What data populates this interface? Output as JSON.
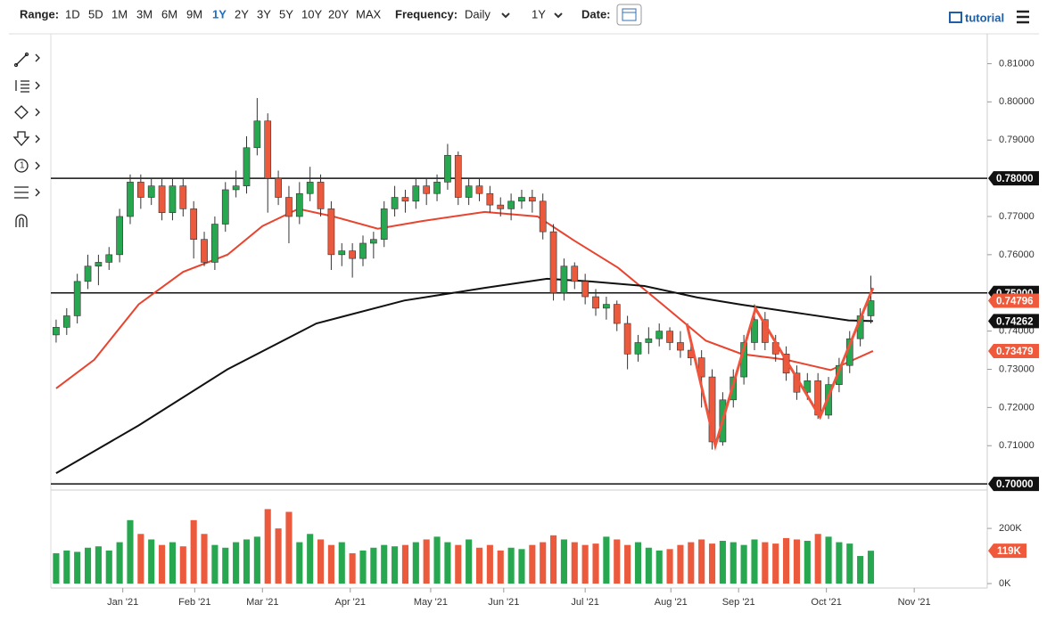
{
  "toolbar": {
    "range_label": "Range:",
    "ranges": [
      "1D",
      "5D",
      "1M",
      "3M",
      "6M",
      "9M",
      "1Y",
      "2Y",
      "3Y",
      "5Y",
      "10Y",
      "20Y",
      "MAX"
    ],
    "frequency_label": "Frequency:",
    "frequency": "Daily",
    "period": "1Y",
    "date_label": "Date:",
    "tutorial": "tutorial"
  },
  "chart_data": {
    "type": "candlestick",
    "open": [
      0.739,
      0.741,
      0.744,
      0.753,
      0.757,
      0.758,
      0.76,
      0.77,
      0.779,
      0.775,
      0.778,
      0.771,
      0.778,
      0.772,
      0.764,
      0.758,
      0.768,
      0.777,
      0.778,
      0.788,
      0.795,
      0.78,
      0.775,
      0.77,
      0.776,
      0.779,
      0.772,
      0.76,
      0.761,
      0.759,
      0.763,
      0.764,
      0.772,
      0.775,
      0.774,
      0.778,
      0.776,
      0.779,
      0.786,
      0.775,
      0.778,
      0.776,
      0.773,
      0.772,
      0.774,
      0.775,
      0.774,
      0.766,
      0.75,
      0.757,
      0.753,
      0.749,
      0.746,
      0.747,
      0.742,
      0.734,
      0.737,
      0.738,
      0.74,
      0.737,
      0.735,
      0.733,
      0.728,
      0.711,
      0.722,
      0.728,
      0.737,
      0.743,
      0.737,
      0.734,
      0.729,
      0.724,
      0.727,
      0.718,
      0.726,
      0.731,
      0.738,
      0.744
    ],
    "high": [
      0.743,
      0.746,
      0.755,
      0.76,
      0.76,
      0.762,
      0.772,
      0.781,
      0.781,
      0.78,
      0.78,
      0.78,
      0.78,
      0.774,
      0.766,
      0.77,
      0.779,
      0.782,
      0.791,
      0.801,
      0.797,
      0.782,
      0.778,
      0.779,
      0.783,
      0.781,
      0.774,
      0.763,
      0.763,
      0.765,
      0.766,
      0.774,
      0.778,
      0.777,
      0.78,
      0.78,
      0.781,
      0.789,
      0.787,
      0.78,
      0.78,
      0.778,
      0.775,
      0.776,
      0.777,
      0.777,
      0.776,
      0.768,
      0.759,
      0.758,
      0.755,
      0.751,
      0.749,
      0.748,
      0.744,
      0.739,
      0.741,
      0.742,
      0.741,
      0.74,
      0.737,
      0.735,
      0.73,
      0.724,
      0.73,
      0.739,
      0.747,
      0.745,
      0.739,
      0.736,
      0.731,
      0.729,
      0.729,
      0.728,
      0.733,
      0.74,
      0.746,
      0.7545
    ],
    "low": [
      0.737,
      0.739,
      0.742,
      0.751,
      0.752,
      0.756,
      0.758,
      0.768,
      0.772,
      0.773,
      0.769,
      0.769,
      0.77,
      0.759,
      0.757,
      0.756,
      0.766,
      0.775,
      0.776,
      0.786,
      0.771,
      0.773,
      0.763,
      0.768,
      0.774,
      0.77,
      0.756,
      0.757,
      0.754,
      0.757,
      0.759,
      0.762,
      0.77,
      0.771,
      0.772,
      0.773,
      0.774,
      0.777,
      0.773,
      0.773,
      0.774,
      0.771,
      0.77,
      0.769,
      0.772,
      0.771,
      0.764,
      0.748,
      0.748,
      0.751,
      0.747,
      0.744,
      0.743,
      0.74,
      0.73,
      0.732,
      0.734,
      0.736,
      0.735,
      0.733,
      0.731,
      0.72,
      0.709,
      0.71,
      0.72,
      0.726,
      0.735,
      0.735,
      0.732,
      0.727,
      0.722,
      0.722,
      0.717,
      0.717,
      0.724,
      0.729,
      0.736,
      0.742
    ],
    "close": [
      0.741,
      0.744,
      0.753,
      0.757,
      0.758,
      0.76,
      0.77,
      0.779,
      0.775,
      0.778,
      0.771,
      0.778,
      0.772,
      0.764,
      0.758,
      0.768,
      0.777,
      0.778,
      0.788,
      0.795,
      0.78,
      0.775,
      0.77,
      0.776,
      0.779,
      0.772,
      0.76,
      0.761,
      0.759,
      0.763,
      0.764,
      0.772,
      0.775,
      0.774,
      0.778,
      0.776,
      0.779,
      0.786,
      0.775,
      0.778,
      0.776,
      0.773,
      0.772,
      0.774,
      0.775,
      0.774,
      0.766,
      0.75,
      0.757,
      0.753,
      0.749,
      0.746,
      0.747,
      0.742,
      0.734,
      0.737,
      0.738,
      0.74,
      0.737,
      0.735,
      0.733,
      0.728,
      0.711,
      0.722,
      0.728,
      0.737,
      0.743,
      0.737,
      0.734,
      0.729,
      0.724,
      0.727,
      0.718,
      0.726,
      0.731,
      0.738,
      0.744,
      0.74796
    ],
    "up_color": "#27a74f",
    "down_color": "#ec5a3e",
    "xlim": [
      -0.5,
      88
    ],
    "xticks": [
      {
        "value": 6.3,
        "label": "Jan '21"
      },
      {
        "value": 13.1,
        "label": "Feb '21"
      },
      {
        "value": 19.5,
        "label": "Mar '21"
      },
      {
        "value": 27.8,
        "label": "Apr '21"
      },
      {
        "value": 35.4,
        "label": "May '21"
      },
      {
        "value": 42.3,
        "label": "Jun '21"
      },
      {
        "value": 50,
        "label": "Jul '21"
      },
      {
        "value": 58.1,
        "label": "Aug '21"
      },
      {
        "value": 64.5,
        "label": "Sep '21"
      },
      {
        "value": 72.8,
        "label": "Oct '21"
      },
      {
        "value": 81.1,
        "label": "Nov '21"
      }
    ],
    "ylim": [
      0.6984,
      0.8178
    ],
    "yticks": [
      {
        "value": 0.71,
        "label": "0.71000"
      },
      {
        "value": 0.72,
        "label": "0.72000"
      },
      {
        "value": 0.73,
        "label": "0.73000"
      },
      {
        "value": 0.74,
        "label": "0.74000"
      },
      {
        "value": 0.76,
        "label": "0.76000"
      },
      {
        "value": 0.77,
        "label": "0.77000"
      },
      {
        "value": 0.79,
        "label": "0.79000"
      },
      {
        "value": 0.8,
        "label": "0.80000"
      },
      {
        "value": 0.81,
        "label": "0.81000"
      }
    ],
    "levels": [
      {
        "value": 0.78,
        "label": "0.78000"
      },
      {
        "value": 0.75,
        "label": "0.75000"
      },
      {
        "value": 0.7,
        "label": "0.70000"
      }
    ],
    "moving_averages": [
      {
        "color": "#e8442f",
        "x": [
          0,
          3.6,
          7.8,
          12,
          16.2,
          19.5,
          22.9,
          26.2,
          30.4,
          34.6,
          40.5,
          45.5,
          48.9,
          53.1,
          57.3,
          61.4,
          64.8,
          69,
          73.2,
          77.2
        ],
        "values": [
          0.725,
          0.7325,
          0.747,
          0.7555,
          0.76,
          0.7675,
          0.772,
          0.77,
          0.7668,
          0.7688,
          0.7712,
          0.77,
          0.7638,
          0.7566,
          0.747,
          0.7375,
          0.734,
          0.7325,
          0.7298,
          0.73479
        ]
      },
      {
        "color": "#111111",
        "x": [
          0,
          7.8,
          16.2,
          24.6,
          32.9,
          40.5,
          46.4,
          50.5,
          55.6,
          60.6,
          64.8,
          70.7,
          74.9,
          77.2
        ],
        "values": [
          0.7028,
          0.7153,
          0.73,
          0.742,
          0.748,
          0.7513,
          0.7537,
          0.753,
          0.7518,
          0.7488,
          0.7469,
          0.7445,
          0.7428,
          0.74262
        ]
      }
    ],
    "pattern": {
      "color": "#f0543c",
      "x": [
        59.6,
        62.3,
        66.1,
        72.2,
        77.2
      ],
      "values": [
        0.742,
        0.71,
        0.7459,
        0.7175,
        0.7513
      ]
    },
    "price_tags": [
      {
        "value": 0.74796,
        "label": "0.74796",
        "color": "#f05a3c"
      },
      {
        "value": 0.74262,
        "label": "0.74262",
        "color": "#111111"
      },
      {
        "value": 0.73479,
        "label": "0.73479",
        "color": "#f05a3c"
      }
    ],
    "volume": {
      "values": [
        110,
        120,
        115,
        130,
        135,
        120,
        150,
        230,
        180,
        160,
        140,
        150,
        135,
        230,
        180,
        140,
        130,
        150,
        160,
        170,
        270,
        200,
        260,
        150,
        180,
        160,
        140,
        150,
        110,
        120,
        130,
        140,
        135,
        140,
        150,
        160,
        170,
        150,
        140,
        160,
        130,
        140,
        120,
        130,
        125,
        140,
        150,
        175,
        160,
        150,
        140,
        145,
        170,
        160,
        140,
        150,
        130,
        120,
        125,
        140,
        150,
        160,
        145,
        155,
        150,
        140,
        160,
        150,
        145,
        165,
        160,
        155,
        180,
        170,
        150,
        145,
        100,
        119
      ],
      "ylim": [
        0,
        323
      ],
      "yticks": [
        {
          "value": 0,
          "label": "0K"
        },
        {
          "value": 200,
          "label": "200K"
        }
      ],
      "last": {
        "value": 119,
        "label": "119K"
      }
    }
  }
}
